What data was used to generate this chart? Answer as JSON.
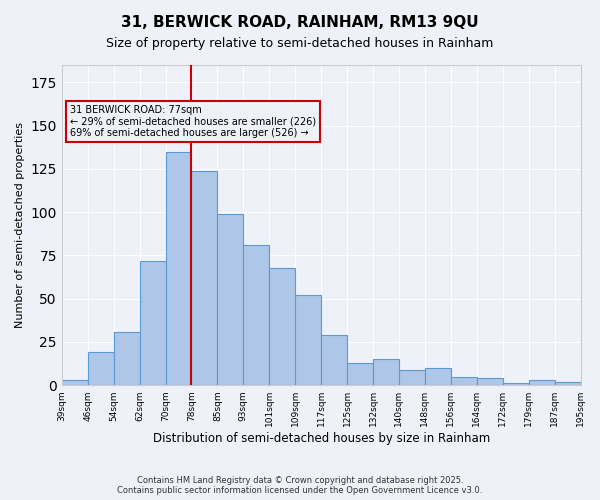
{
  "title1": "31, BERWICK ROAD, RAINHAM, RM13 9QU",
  "title2": "Size of property relative to semi-detached houses in Rainham",
  "xlabel": "Distribution of semi-detached houses by size in Rainham",
  "ylabel": "Number of semi-detached properties",
  "bar_values": [
    3,
    19,
    31,
    72,
    135,
    124,
    99,
    81,
    68,
    52,
    29,
    13,
    15,
    9,
    10,
    5,
    4,
    1,
    3,
    2
  ],
  "tick_labels": [
    "39sqm",
    "46sqm",
    "54sqm",
    "62sqm",
    "70sqm",
    "78sqm",
    "85sqm",
    "93sqm",
    "101sqm",
    "109sqm",
    "117sqm",
    "125sqm",
    "132sqm",
    "140sqm",
    "148sqm",
    "156sqm",
    "164sqm",
    "172sqm",
    "179sqm",
    "187sqm",
    "195sqm"
  ],
  "bar_color": "#aec6e8",
  "bar_edge_color": "#5b9bd5",
  "vline_color": "#cc0000",
  "annotation_title": "31 BERWICK ROAD: 77sqm",
  "annotation_line1": "← 29% of semi-detached houses are smaller (226)",
  "annotation_line2": "69% of semi-detached houses are larger (526) →",
  "annotation_box_color": "#cc0000",
  "ylim": [
    0,
    185
  ],
  "footnote": "Contains HM Land Registry data © Crown copyright and database right 2025.\nContains public sector information licensed under the Open Government Licence v3.0.",
  "background_color": "#eef2f8"
}
